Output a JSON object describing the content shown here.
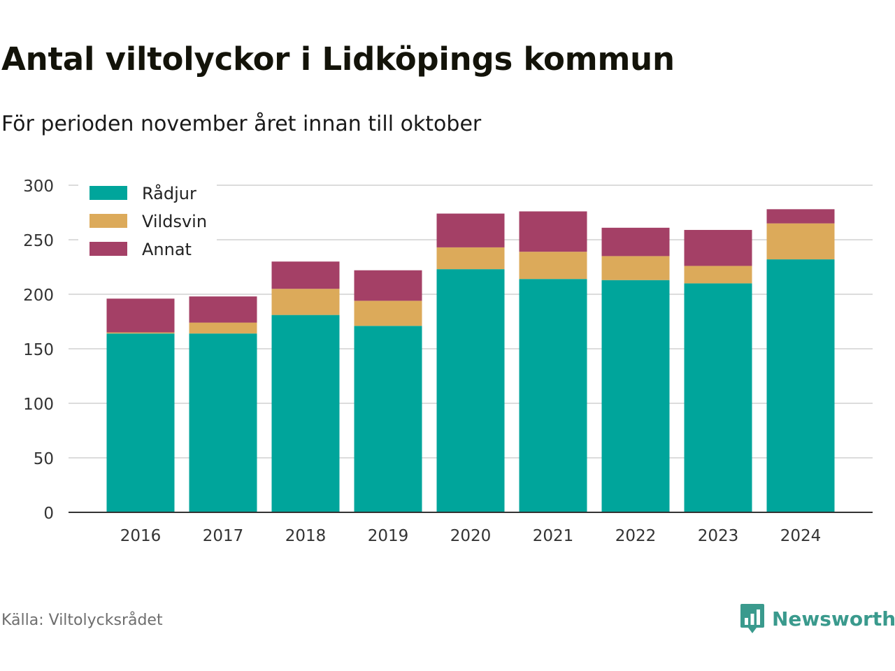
{
  "header": {
    "title": "Antal viltolyckor i Lidköpings kommun",
    "subtitle": "För perioden november året innan till oktober"
  },
  "footer": {
    "source": "Källa: Viltolycksrådet",
    "brand": "Newsworthy",
    "brand_icon": "bar-chart-speech-bubble-icon"
  },
  "colors": {
    "radjur": "#00a59b",
    "vildsvin": "#dcaa5a",
    "annat": "#a44066",
    "grid": "#dcdcdc",
    "axis": "#333333",
    "brand": "#3a9a8d"
  },
  "chart_data": {
    "type": "bar",
    "stacked": true,
    "categories": [
      "2016",
      "2017",
      "2018",
      "2019",
      "2020",
      "2021",
      "2022",
      "2023",
      "2024"
    ],
    "series": [
      {
        "name": "Rådjur",
        "color": "#00a59b",
        "values": [
          164,
          164,
          181,
          171,
          223,
          214,
          213,
          210,
          232
        ]
      },
      {
        "name": "Vildsvin",
        "color": "#dcaa5a",
        "values": [
          1,
          10,
          24,
          23,
          20,
          25,
          22,
          16,
          33
        ]
      },
      {
        "name": "Annat",
        "color": "#a44066",
        "values": [
          31,
          24,
          25,
          28,
          31,
          37,
          26,
          33,
          13
        ]
      }
    ],
    "ylim": [
      0,
      300
    ],
    "yticks": [
      0,
      50,
      100,
      150,
      200,
      250,
      300
    ],
    "grid": true,
    "legend": "top-left"
  }
}
